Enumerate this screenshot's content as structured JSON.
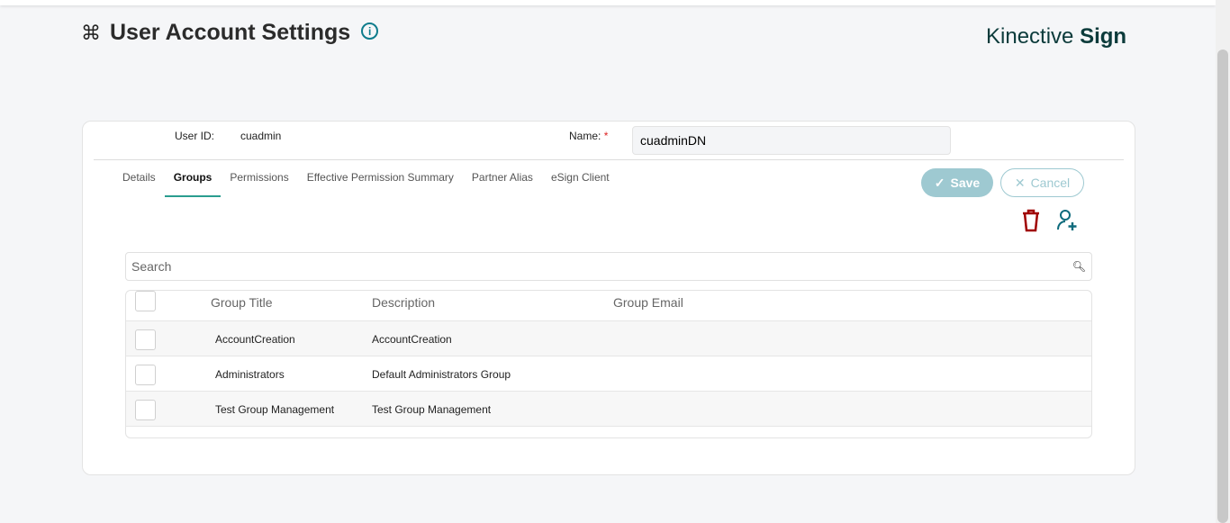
{
  "page": {
    "title": "User Account Settings",
    "brand_light": "Kinective",
    "brand_bold": "Sign"
  },
  "form": {
    "user_id_label": "User ID:",
    "user_id": "cuadmin",
    "name_label": "Name:",
    "required_mark": "*",
    "name_value": "cuadminDN"
  },
  "tabs": [
    {
      "label": "Details"
    },
    {
      "label": "Groups",
      "active": true
    },
    {
      "label": "Permissions"
    },
    {
      "label": "Effective Permission Summary"
    },
    {
      "label": "Partner Alias"
    },
    {
      "label": "eSign Client"
    }
  ],
  "actions": {
    "save": "Save",
    "cancel": "Cancel"
  },
  "search": {
    "placeholder": "Search"
  },
  "table": {
    "headers": [
      "Group Title",
      "Description",
      "Group Email"
    ],
    "rows": [
      [
        "AccountCreation",
        "AccountCreation",
        ""
      ],
      [
        "Administrators",
        "Default Administrators Group",
        ""
      ],
      [
        "Test Group Management",
        "Test Group Management",
        ""
      ]
    ]
  },
  "colors": {
    "accent": "#0e7c8c",
    "delete": "#a00000",
    "save_bg": "#9ec9d1"
  }
}
